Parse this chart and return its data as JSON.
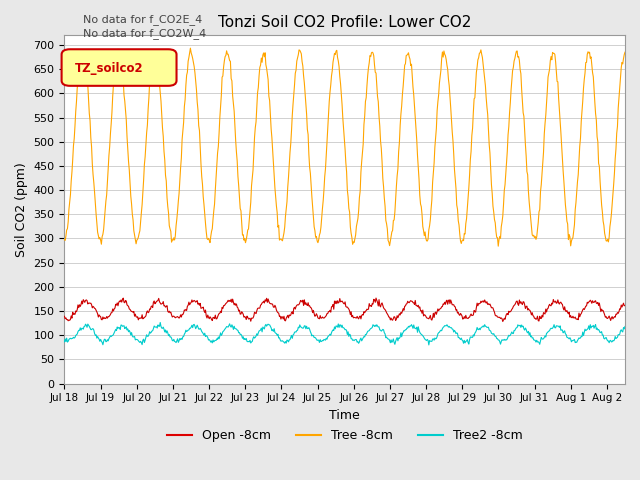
{
  "title": "Tonzi Soil CO2 Profile: Lower CO2",
  "ylabel": "Soil CO2 (ppm)",
  "xlabel": "Time",
  "no_data_text": [
    "No data for f_CO2E_4",
    "No data for f_CO2W_4"
  ],
  "legend_label": "TZ_soilco2",
  "legend_entries": [
    "Open -8cm",
    "Tree -8cm",
    "Tree2 -8cm"
  ],
  "legend_colors": [
    "#dd0000",
    "#ffa500",
    "#00cccc"
  ],
  "ylim": [
    0,
    720
  ],
  "yticks": [
    0,
    50,
    100,
    150,
    200,
    250,
    300,
    350,
    400,
    450,
    500,
    550,
    600,
    650,
    700
  ],
  "background_color": "#e8e8e8",
  "plot_background": "#ffffff",
  "grid_color": "#d0d0d0",
  "n_days": 15.5,
  "start_day": 18,
  "tree_color": "#ffa500",
  "open_color": "#cc0000",
  "tree2_color": "#00cccc",
  "figwidth": 6.4,
  "figheight": 4.8,
  "dpi": 100
}
